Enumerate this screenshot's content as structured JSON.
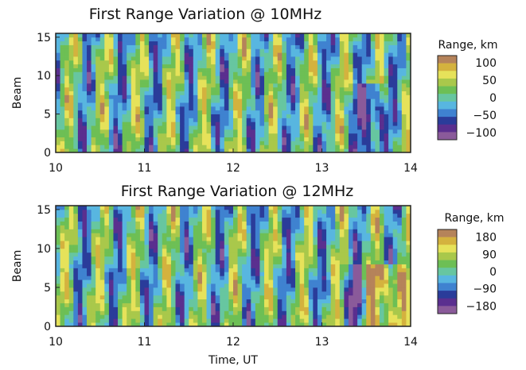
{
  "chart_data": [
    {
      "type": "heatmap",
      "title": "First Range Variation @ 10MHz",
      "xlabel": "",
      "ylabel": "Beam",
      "xlim": [
        10,
        14
      ],
      "ylim": [
        0,
        15.5
      ],
      "x_ticks": [
        "10",
        "11",
        "12",
        "13",
        "14"
      ],
      "y_ticks": [
        "0",
        "5",
        "10",
        "15"
      ],
      "colorbar": {
        "title": "Range, km",
        "ticks": [
          "100",
          "50",
          "0",
          "−50",
          "−100"
        ],
        "tick_values": [
          100,
          50,
          0,
          -50,
          -100
        ],
        "range": [
          -120,
          120
        ]
      },
      "colors": [
        "#8a5a9a",
        "#5a2f8f",
        "#2a3c9a",
        "#3f82d0",
        "#58b6e0",
        "#67c6a0",
        "#6dbf55",
        "#a9c84b",
        "#e6e25a",
        "#d4b23e",
        "#b5835a"
      ],
      "grid": false
    },
    {
      "type": "heatmap",
      "title": "First Range Variation @ 12MHz",
      "xlabel": "Time, UT",
      "ylabel": "Beam",
      "xlim": [
        10,
        14
      ],
      "ylim": [
        0,
        15.5
      ],
      "x_ticks": [
        "10",
        "11",
        "12",
        "13",
        "14"
      ],
      "y_ticks": [
        "0",
        "5",
        "10",
        "15"
      ],
      "colorbar": {
        "title": "Range, km",
        "ticks": [
          "180",
          "90",
          "0",
          "−90",
          "−180"
        ],
        "tick_values": [
          180,
          90,
          0,
          -90,
          -180
        ],
        "range": [
          -220,
          220
        ]
      },
      "colors": [
        "#8a5a9a",
        "#5a2f8f",
        "#2a3c9a",
        "#3f82d0",
        "#58b6e0",
        "#67c6a0",
        "#6dbf55",
        "#a9c84b",
        "#e6e25a",
        "#d4b23e",
        "#b5835a"
      ],
      "grid": false
    }
  ]
}
